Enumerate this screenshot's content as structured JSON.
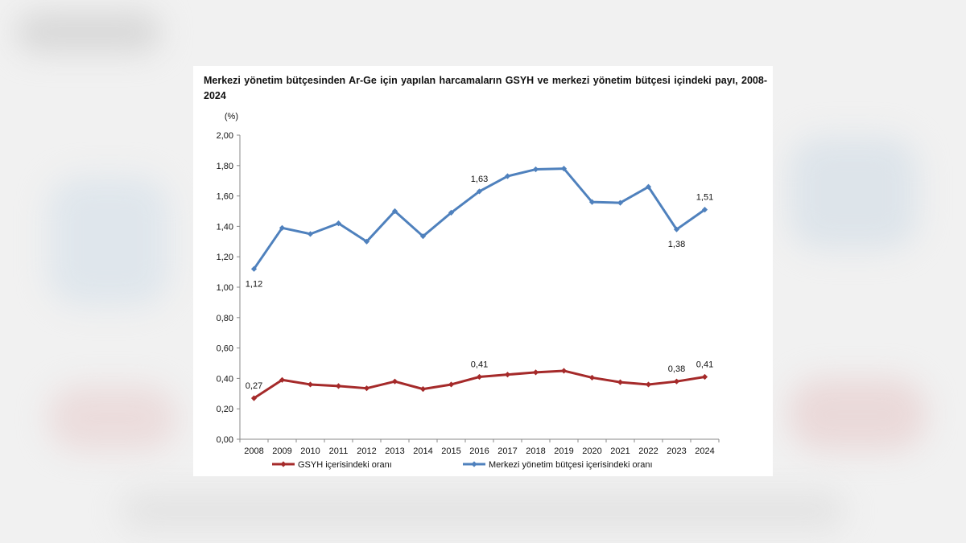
{
  "colors": {
    "gdp_series": "#a52a2a",
    "budget_series": "#4f81bd",
    "axis": "#888888",
    "text": "#111111"
  },
  "chart_data": {
    "type": "line",
    "title": "Merkezi yönetim bütçesinden Ar-Ge için yapılan harcamaların GSYH ve merkezi yönetim bütçesi içindeki payı, 2008-2024",
    "ylabel": "(%)",
    "xlabel": "",
    "ylim": [
      0,
      2
    ],
    "yticks": [
      "0,00",
      "0,20",
      "0,40",
      "0,60",
      "0,80",
      "1,00",
      "1,20",
      "1,40",
      "1,60",
      "1,80",
      "2,00"
    ],
    "categories": [
      "2008",
      "2009",
      "2010",
      "2011",
      "2012",
      "2013",
      "2014",
      "2015",
      "2016",
      "2017",
      "2018",
      "2019",
      "2020",
      "2021",
      "2022",
      "2023",
      "2024"
    ],
    "series": [
      {
        "name": "GSYH içerisindeki oranı",
        "color": "#a52a2a",
        "values": [
          0.27,
          0.39,
          0.36,
          0.35,
          0.335,
          0.38,
          0.33,
          0.36,
          0.41,
          0.425,
          0.44,
          0.45,
          0.405,
          0.375,
          0.36,
          0.38,
          0.41
        ],
        "labels": [
          {
            "index": 0,
            "text": "0,27",
            "pos": "above"
          },
          {
            "index": 8,
            "text": "0,41",
            "pos": "above"
          },
          {
            "index": 15,
            "text": "0,38",
            "pos": "above"
          },
          {
            "index": 16,
            "text": "0,41",
            "pos": "above"
          }
        ]
      },
      {
        "name": "Merkezi yönetim bütçesi içerisindeki oranı",
        "color": "#4f81bd",
        "values": [
          1.12,
          1.39,
          1.35,
          1.42,
          1.3,
          1.5,
          1.335,
          1.49,
          1.63,
          1.73,
          1.775,
          1.78,
          1.56,
          1.555,
          1.66,
          1.38,
          1.51
        ],
        "labels": [
          {
            "index": 0,
            "text": "1,12",
            "pos": "below"
          },
          {
            "index": 8,
            "text": "1,63",
            "pos": "above"
          },
          {
            "index": 15,
            "text": "1,38",
            "pos": "below"
          },
          {
            "index": 16,
            "text": "1,51",
            "pos": "above"
          }
        ]
      }
    ],
    "grid": false,
    "legend": "bottom"
  }
}
